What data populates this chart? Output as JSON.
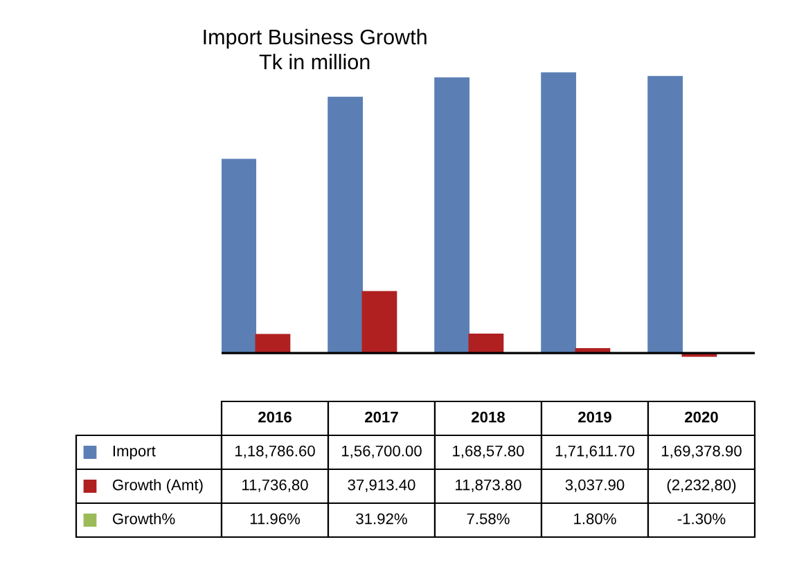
{
  "chart_data": {
    "type": "bar",
    "title": "Import Business Growth",
    "subtitle": "Tk in million",
    "categories": [
      "2016",
      "2017",
      "2018",
      "2019",
      "2020"
    ],
    "tick_labels": "x",
    "legend": "bottom",
    "series": [
      {
        "name": "Import",
        "color": "#5b7fb5",
        "values": [
          118786.6,
          156700.0,
          168578.0,
          171611.7,
          169378.9
        ],
        "value_labels": [
          "1,18,786.60",
          "1,56,700.00",
          "1,68,57.80",
          "1,71,611.70",
          "1,69,378.90"
        ]
      },
      {
        "name": "Growth (Amt)",
        "color": "#b02020",
        "values": [
          11736.8,
          37913.4,
          11873.8,
          3037.9,
          -2232.8
        ],
        "value_labels": [
          "11,736,80",
          "37,913.40",
          "11,873.80",
          "3,037.90",
          "(2,232,80)"
        ]
      },
      {
        "name": "Growth%",
        "color": "#9bbb59",
        "values": [
          11.96,
          31.92,
          7.58,
          1.8,
          -1.3
        ],
        "value_labels": [
          "11.96%",
          "31.92%",
          "7.58%",
          "1.80%",
          "-1.30%"
        ]
      }
    ]
  }
}
